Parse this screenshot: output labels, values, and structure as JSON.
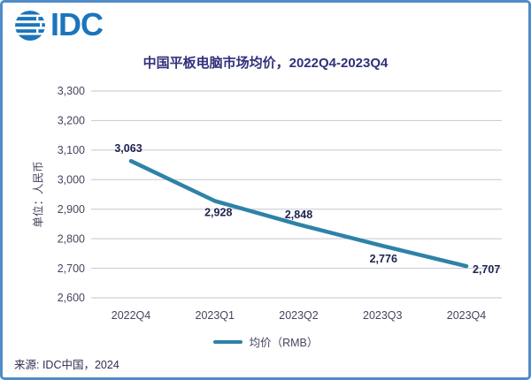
{
  "logo": {
    "text": "IDC"
  },
  "title": "中国平板电脑市场均价，2022Q4-2023Q4",
  "source": "来源: IDC中国，2024",
  "legend": {
    "label": "均价（RMB）"
  },
  "colors": {
    "line": "#2e82a8",
    "title": "#32307c",
    "axis_text": "#45455f",
    "data_label": "#1f2350",
    "gridline": "#c6c6d2",
    "border": "#4f8cc8",
    "logo_blue": "#1b75bc"
  },
  "chart_data": {
    "type": "line",
    "title": "中国平板电脑市场均价，2022Q4-2023Q4",
    "categories": [
      "2022Q4",
      "2023Q1",
      "2023Q2",
      "2023Q3",
      "2023Q4"
    ],
    "series": [
      {
        "name": "均价（RMB）",
        "values": [
          3063,
          2928,
          2848,
          2776,
          2707
        ]
      }
    ],
    "value_labels": [
      "3,063",
      "2,928",
      "2,848",
      "2,776",
      "2,707"
    ],
    "xlabel": "",
    "ylabel": "单位：人民币",
    "ylim": [
      2600,
      3300
    ],
    "ytick_step": 100,
    "ytick_labels": [
      "2,600",
      "2,700",
      "2,800",
      "2,900",
      "3,000",
      "3,100",
      "3,200",
      "3,300"
    ],
    "grid": true,
    "legend_position": "bottom"
  }
}
